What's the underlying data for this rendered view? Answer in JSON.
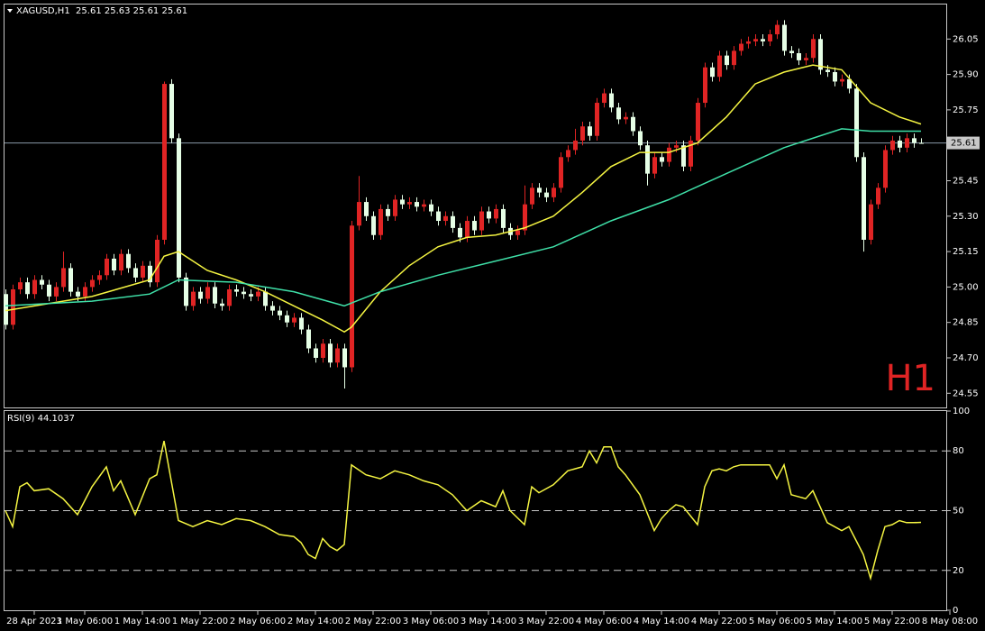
{
  "chart_data": [
    {
      "type": "candlestick",
      "title": "XAGUSD,H1  25.61 25.63 25.61 25.61",
      "watermark": "H1",
      "up_color": "#e02424",
      "down_color": "#e6ffe6",
      "xlim": [
        0,
        131
      ],
      "ylim": [
        24.49,
        26.2
      ],
      "yticks": [
        26.05,
        {
          "value": 25.9,
          "label": "25.90"
        },
        25.75,
        25.45,
        {
          "value": 25.3,
          "label": "25.30"
        },
        25.15,
        {
          "value": 25.0,
          "label": "25.00"
        },
        24.85,
        {
          "value": 24.7,
          "label": "24.70"
        },
        24.55
      ],
      "current_price": 25.61,
      "open": [
        24.97,
        24.84,
        24.99,
        25.02,
        24.97,
        25.03,
        25.01,
        24.96,
        25.0,
        25.08,
        24.98,
        24.96,
        25.0,
        25.03,
        25.05,
        25.12,
        25.07,
        25.14,
        25.08,
        25.04,
        25.09,
        25.02,
        25.2,
        25.86,
        25.63,
        25.04,
        24.92,
        24.98,
        24.95,
        25.0,
        24.93,
        24.92,
        24.99,
        24.98,
        24.97,
        24.96,
        24.98,
        24.92,
        24.9,
        24.88,
        24.85,
        24.87,
        24.82,
        24.74,
        24.7,
        24.76,
        24.68,
        24.74,
        24.66,
        25.26,
        25.36,
        25.3,
        25.22,
        25.33,
        25.3,
        25.37,
        25.35,
        25.36,
        25.34,
        25.35,
        25.32,
        25.28,
        25.3,
        25.25,
        25.21,
        25.28,
        25.24,
        25.32,
        25.29,
        25.33,
        25.25,
        25.22,
        25.24,
        25.35,
        25.42,
        25.4,
        25.38,
        25.42,
        25.55,
        25.58,
        25.62,
        25.68,
        25.64,
        25.78,
        25.82,
        25.76,
        25.71,
        25.72,
        25.66,
        25.6,
        25.48,
        25.55,
        25.53,
        25.59,
        25.6,
        25.51,
        25.62,
        25.78,
        25.93,
        25.89,
        25.98,
        25.94,
        26.0,
        26.03,
        26.04,
        26.05,
        26.04,
        26.07,
        26.11,
        26.0,
        25.99,
        25.96,
        25.97,
        26.05,
        25.92,
        25.91,
        25.87,
        25.88,
        25.84,
        25.55,
        25.2,
        25.35,
        25.42,
        25.58,
        25.62,
        25.59,
        25.63,
        25.61
      ],
      "high": [
        24.99,
        25.01,
        25.04,
        25.04,
        25.05,
        25.05,
        25.03,
        25.02,
        25.15,
        25.1,
        25.0,
        25.02,
        25.05,
        25.07,
        25.14,
        25.14,
        25.16,
        25.16,
        25.1,
        25.11,
        25.11,
        25.22,
        25.87,
        25.88,
        25.65,
        25.06,
        25.0,
        25.0,
        25.02,
        25.02,
        24.95,
        25.01,
        25.01,
        25.0,
        24.99,
        25.0,
        25.0,
        24.94,
        24.92,
        24.9,
        24.89,
        24.89,
        24.84,
        24.76,
        24.78,
        24.78,
        24.76,
        24.76,
        25.28,
        25.47,
        25.38,
        25.32,
        25.35,
        25.35,
        25.39,
        25.39,
        25.38,
        25.38,
        25.37,
        25.37,
        25.34,
        25.32,
        25.32,
        25.27,
        25.3,
        25.3,
        25.34,
        25.34,
        25.35,
        25.35,
        25.27,
        25.26,
        25.43,
        25.44,
        25.44,
        25.42,
        25.44,
        25.57,
        25.6,
        25.67,
        25.7,
        25.7,
        25.8,
        25.84,
        25.84,
        25.78,
        25.74,
        25.74,
        25.68,
        25.62,
        25.57,
        25.57,
        25.61,
        25.62,
        25.62,
        25.64,
        25.8,
        25.95,
        25.95,
        26.0,
        26.0,
        26.02,
        26.05,
        26.06,
        26.07,
        26.07,
        26.09,
        26.13,
        26.13,
        26.02,
        26.01,
        25.99,
        26.07,
        26.07,
        25.94,
        25.93,
        25.9,
        25.9,
        25.86,
        25.57,
        25.37,
        25.44,
        25.6,
        25.64,
        25.64,
        25.65,
        25.65,
        25.63
      ],
      "low": [
        24.82,
        24.82,
        24.97,
        24.95,
        24.95,
        24.99,
        24.94,
        24.94,
        24.98,
        24.96,
        24.94,
        24.94,
        24.98,
        25.01,
        25.03,
        25.05,
        25.05,
        25.06,
        25.02,
        25.02,
        25.0,
        25.0,
        25.18,
        25.61,
        25.02,
        24.9,
        24.9,
        24.93,
        24.93,
        24.91,
        24.9,
        24.9,
        24.96,
        24.95,
        24.94,
        24.94,
        24.9,
        24.88,
        24.86,
        24.83,
        24.83,
        24.8,
        24.72,
        24.68,
        24.68,
        24.66,
        24.66,
        24.57,
        24.64,
        25.24,
        25.28,
        25.2,
        25.2,
        25.28,
        25.28,
        25.33,
        25.33,
        25.32,
        25.32,
        25.3,
        25.26,
        25.26,
        25.23,
        25.19,
        25.19,
        25.22,
        25.22,
        25.27,
        25.27,
        25.23,
        25.2,
        25.2,
        25.22,
        25.33,
        25.38,
        25.36,
        25.36,
        25.4,
        25.53,
        25.56,
        25.6,
        25.62,
        25.62,
        25.76,
        25.74,
        25.69,
        25.69,
        25.64,
        25.58,
        25.43,
        25.46,
        25.51,
        25.51,
        25.57,
        25.49,
        25.49,
        25.6,
        25.76,
        25.87,
        25.87,
        25.92,
        25.92,
        25.98,
        26.01,
        26.02,
        26.02,
        26.02,
        26.05,
        25.98,
        25.97,
        25.94,
        25.94,
        25.95,
        25.9,
        25.89,
        25.85,
        25.85,
        25.82,
        25.53,
        25.15,
        25.18,
        25.33,
        25.4,
        25.56,
        25.57,
        25.57,
        25.59,
        25.61
      ],
      "close": [
        24.84,
        24.99,
        25.02,
        24.97,
        25.03,
        25.01,
        24.96,
        25.0,
        25.08,
        24.98,
        24.96,
        25.0,
        25.03,
        25.05,
        25.12,
        25.07,
        25.14,
        25.08,
        25.04,
        25.09,
        25.02,
        25.2,
        25.86,
        25.63,
        25.04,
        24.92,
        24.98,
        24.95,
        25.0,
        24.93,
        24.92,
        24.99,
        24.98,
        24.97,
        24.96,
        24.98,
        24.92,
        24.9,
        24.88,
        24.85,
        24.87,
        24.82,
        24.74,
        24.7,
        24.76,
        24.68,
        24.74,
        24.66,
        25.26,
        25.36,
        25.3,
        25.22,
        25.33,
        25.3,
        25.37,
        25.35,
        25.36,
        25.34,
        25.35,
        25.32,
        25.28,
        25.3,
        25.25,
        25.21,
        25.28,
        25.24,
        25.32,
        25.29,
        25.33,
        25.25,
        25.22,
        25.24,
        25.35,
        25.42,
        25.4,
        25.38,
        25.42,
        25.55,
        25.58,
        25.62,
        25.68,
        25.64,
        25.78,
        25.82,
        25.76,
        25.71,
        25.72,
        25.66,
        25.6,
        25.48,
        25.55,
        25.53,
        25.59,
        25.6,
        25.51,
        25.62,
        25.78,
        25.93,
        25.89,
        25.98,
        25.94,
        26.0,
        26.03,
        26.04,
        26.05,
        26.04,
        26.07,
        26.11,
        26.0,
        25.99,
        25.96,
        25.97,
        26.05,
        25.92,
        25.91,
        25.87,
        25.88,
        25.84,
        25.55,
        25.2,
        25.35,
        25.42,
        25.58,
        25.62,
        25.59,
        25.63,
        25.61,
        25.61
      ],
      "series": [
        {
          "color": "#f5f542",
          "x": [
            0,
            12,
            20,
            22,
            24,
            28,
            32,
            36,
            40,
            44,
            47,
            48,
            52,
            56,
            60,
            64,
            68,
            72,
            76,
            80,
            84,
            88,
            92,
            96,
            100,
            104,
            108,
            112,
            116,
            120,
            124,
            127
          ],
          "values": [
            24.9,
            24.96,
            25.03,
            25.13,
            25.15,
            25.07,
            25.03,
            24.98,
            24.92,
            24.86,
            24.81,
            24.83,
            24.98,
            25.09,
            25.17,
            25.21,
            25.22,
            25.25,
            25.3,
            25.4,
            25.51,
            25.57,
            25.57,
            25.61,
            25.72,
            25.86,
            25.91,
            25.94,
            25.92,
            25.78,
            25.72,
            25.69
          ]
        },
        {
          "color": "#3fe0a8",
          "x": [
            0,
            12,
            20,
            24,
            32,
            40,
            47,
            52,
            60,
            68,
            76,
            84,
            92,
            100,
            108,
            116,
            120,
            127
          ],
          "values": [
            24.92,
            24.94,
            24.97,
            25.03,
            25.02,
            24.98,
            24.92,
            24.98,
            25.05,
            25.11,
            25.17,
            25.28,
            25.37,
            25.48,
            25.59,
            25.67,
            25.66,
            25.66
          ]
        }
      ]
    },
    {
      "type": "line",
      "title": "RSI(9) 44.1037",
      "xlim": [
        0,
        131
      ],
      "ylim": [
        0,
        100
      ],
      "yticks": [
        100,
        80,
        50,
        20,
        0
      ],
      "levels": [
        80,
        50,
        20
      ],
      "xticks": [
        {
          "value": 4,
          "label": "28 Apr 2023"
        },
        {
          "value": 11,
          "label": "1 May 06:00"
        },
        {
          "value": 19,
          "label": "1 May 14:00"
        },
        {
          "value": 27,
          "label": "1 May 22:00"
        },
        {
          "value": 35,
          "label": "2 May 06:00"
        },
        {
          "value": 43,
          "label": "2 May 14:00"
        },
        {
          "value": 51,
          "label": "2 May 22:00"
        },
        {
          "value": 59,
          "label": "3 May 06:00"
        },
        {
          "value": 67,
          "label": "3 May 14:00"
        },
        {
          "value": 75,
          "label": "3 May 22:00"
        },
        {
          "value": 83,
          "label": "4 May 06:00"
        },
        {
          "value": 91,
          "label": "4 May 14:00"
        },
        {
          "value": 99,
          "label": "4 May 22:00"
        },
        {
          "value": 107,
          "label": "5 May 06:00"
        },
        {
          "value": 115,
          "label": "5 May 14:00"
        },
        {
          "value": 123,
          "label": "5 May 22:00"
        },
        {
          "value": 131,
          "label": "8 May 08:00"
        }
      ],
      "series": [
        {
          "color": "#f5f542",
          "x": [
            0,
            1,
            2,
            3,
            4,
            6,
            8,
            10,
            12,
            14,
            15,
            16,
            18,
            20,
            21,
            22,
            24,
            26,
            28,
            30,
            32,
            34,
            36,
            38,
            40,
            41,
            42,
            43,
            44,
            45,
            46,
            47,
            48,
            50,
            52,
            54,
            56,
            58,
            60,
            62,
            64,
            66,
            68,
            69,
            70,
            72,
            73,
            74,
            76,
            78,
            80,
            81,
            82,
            83,
            84,
            85,
            86,
            88,
            90,
            91,
            92,
            93,
            94,
            96,
            97,
            98,
            99,
            100,
            101,
            102,
            104,
            106,
            107,
            108,
            109,
            111,
            112,
            114,
            116,
            117,
            118,
            119,
            120,
            121,
            122,
            123,
            124,
            125,
            126,
            127
          ],
          "values": [
            50,
            42,
            62,
            64,
            60,
            61,
            56,
            48,
            62,
            72,
            60,
            65,
            48,
            66,
            68,
            85,
            45,
            42,
            45,
            43,
            46,
            45,
            42,
            38,
            37,
            34,
            28,
            26,
            36,
            32,
            30,
            33,
            73,
            68,
            66,
            70,
            68,
            65,
            63,
            58,
            50,
            55,
            52,
            60,
            50,
            43,
            62,
            59,
            63,
            70,
            72,
            80,
            74,
            82,
            82,
            72,
            68,
            58,
            40,
            46,
            50,
            53,
            52,
            43,
            62,
            70,
            71,
            70,
            72,
            73,
            73,
            73,
            66,
            73,
            58,
            56,
            60,
            44,
            40,
            42,
            35,
            28,
            16,
            30,
            42,
            43,
            45,
            44,
            44,
            44.1037
          ]
        }
      ]
    }
  ]
}
